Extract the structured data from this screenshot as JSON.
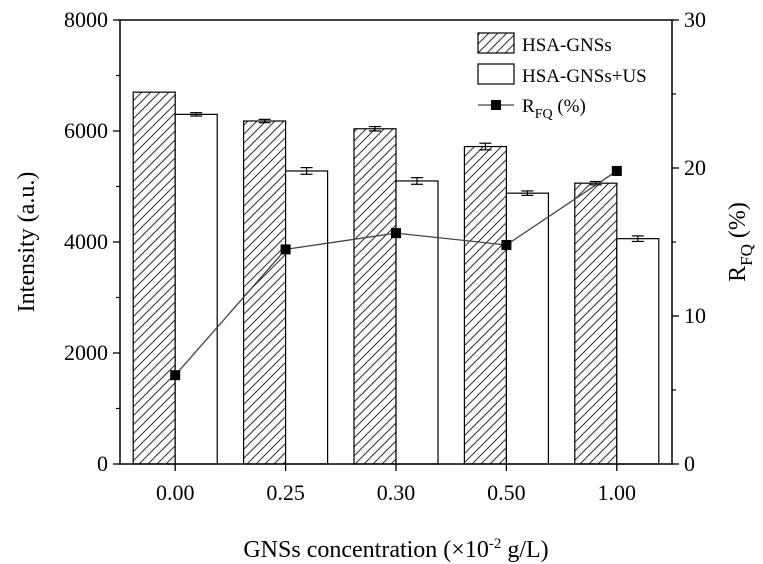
{
  "chart_data": {
    "type": "bar",
    "categories": [
      "0.00",
      "0.25",
      "0.30",
      "0.50",
      "1.00"
    ],
    "series": [
      {
        "name": "HSA-GNSs",
        "axis": "left",
        "style": "hatched",
        "values": [
          6700,
          6180,
          6040,
          5720,
          5060
        ],
        "errors": [
          0,
          30,
          40,
          60,
          30
        ]
      },
      {
        "name": "HSA-GNSs+US",
        "axis": "left",
        "style": "open",
        "values": [
          6300,
          5280,
          5100,
          4880,
          4060
        ],
        "errors": [
          30,
          60,
          60,
          40,
          50
        ]
      },
      {
        "name_main": "R",
        "name_sub": "FQ",
        "name_suffix": " (%)",
        "axis": "right",
        "style": "line-square",
        "values": [
          6.0,
          14.5,
          15.6,
          14.8,
          19.8
        ]
      }
    ],
    "xlabel_prefix": "GNSs concentration (×10",
    "xlabel_sup": "-2",
    "xlabel_suffix": " g/L)",
    "ylabel": "Intensity (a.u.)",
    "y2label_main": "R",
    "y2label_sub": "FQ",
    "y2label_suffix": " (%)",
    "ylim": [
      0,
      8000
    ],
    "y2lim": [
      0,
      30
    ],
    "yticks": [
      0,
      2000,
      4000,
      6000,
      8000
    ],
    "y2ticks": [
      0,
      10,
      20,
      30
    ],
    "legend_position": "top-right"
  }
}
